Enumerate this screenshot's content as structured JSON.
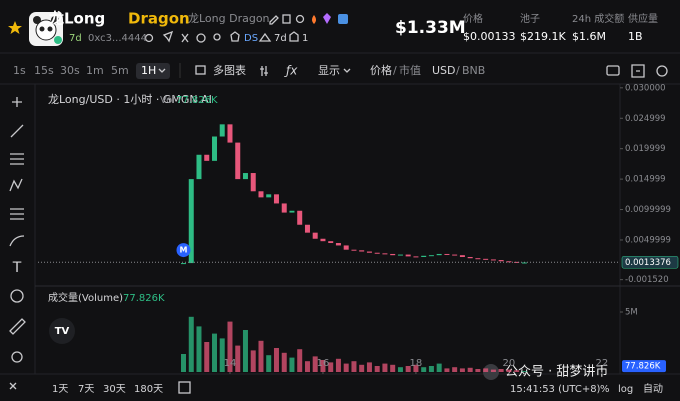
{
  "header": {
    "name": "龙Long",
    "symbol": "Dragon",
    "full_name": "龙Long Dragon",
    "age": "7d",
    "address": "0xc3...4444",
    "ds": "DS",
    "holders_age": "7d",
    "count": "1",
    "market_cap": "$1.33M",
    "stats": [
      {
        "label": "价格",
        "value": "$0.00133"
      },
      {
        "label": "池子",
        "value": "$219.1K"
      },
      {
        "label": "24h 成交额",
        "value": "$1.6M"
      },
      {
        "label": "供应量",
        "value": "1B"
      }
    ]
  },
  "toolbar": {
    "intervals": [
      "1s",
      "15s",
      "30s",
      "1m",
      "5m",
      "1H"
    ],
    "selected_interval": "1H",
    "multi_chart": "多图表",
    "display": "显示",
    "price_toggle": [
      "价格",
      "市值"
    ],
    "currency_toggle": [
      "USD",
      "BNB"
    ]
  },
  "chart_data": [
    {
      "type": "candlestick",
      "title": "龙Long/USD · 1小时 · GMGN.AI",
      "volume_label": "Vol",
      "volume_value": "77.826K",
      "marker": "M",
      "up_color": "#2ebd85",
      "down_color": "#e8577b",
      "x": [
        13,
        13.167,
        13.333,
        13.5,
        13.667,
        13.833,
        14,
        14.167,
        14.333,
        14.5,
        14.667,
        14.833,
        15,
        15.167,
        15.333,
        15.5,
        15.667,
        15.833,
        16,
        16.167,
        16.333,
        16.5,
        16.667,
        16.833,
        17,
        17.167,
        17.333,
        17.5,
        17.667,
        17.833,
        18,
        18.167,
        18.333,
        18.5,
        18.667,
        18.833,
        19,
        19.167,
        19.333,
        19.5,
        19.667,
        19.833,
        20,
        20.167,
        20.333
      ],
      "closes": [
        0.0012,
        0.015,
        0.019,
        0.018,
        0.022,
        0.024,
        0.021,
        0.015,
        0.016,
        0.013,
        0.012,
        0.0125,
        0.011,
        0.0095,
        0.0098,
        0.0075,
        0.0062,
        0.0052,
        0.0048,
        0.0045,
        0.0041,
        0.0034,
        0.0033,
        0.0031,
        0.0029,
        0.0028,
        0.0027,
        0.0025,
        0.0026,
        0.0023,
        0.0022,
        0.0024,
        0.0025,
        0.0027,
        0.0026,
        0.0025,
        0.0022,
        0.002,
        0.0019,
        0.0018,
        0.0017,
        0.0015,
        0.0014,
        0.0013,
        0.0013
      ],
      "last_price": 0.0013376,
      "xlim": [
        9.87,
        22.39
      ],
      "xticks": [
        14,
        16,
        18,
        20,
        22
      ],
      "ylim": [
        -0.0024,
        0.0303
      ],
      "yticks": [
        {
          "value": 0.03,
          "label": "0.030000"
        },
        0.024999,
        0.019999,
        0.014999,
        0.0099999,
        0.0049999,
        {
          "value": -0.00152,
          "label": "-0.001520"
        }
      ]
    },
    {
      "type": "bar",
      "title": "成交量(Volume)",
      "title_value": "77.826K",
      "last_value_label": "77.826K",
      "x": [
        13,
        13.167,
        13.333,
        13.5,
        13.667,
        13.833,
        14,
        14.167,
        14.333,
        14.5,
        14.667,
        14.833,
        15,
        15.167,
        15.333,
        15.5,
        15.667,
        15.833,
        16,
        16.167,
        16.333,
        16.5,
        16.667,
        16.833,
        17,
        17.167,
        17.333,
        17.5,
        17.667,
        17.833,
        18,
        18.167,
        18.333,
        18.5,
        18.667,
        18.833,
        19,
        19.167,
        19.333,
        19.5,
        19.667,
        19.833,
        20,
        20.167,
        20.333
      ],
      "values": [
        1500000,
        4600000,
        3800000,
        2500000,
        3200000,
        2800000,
        4200000,
        2200000,
        3500000,
        1800000,
        2600000,
        1400000,
        2000000,
        1600000,
        1200000,
        1900000,
        900000,
        1300000,
        1000000,
        800000,
        1100000,
        700000,
        900000,
        600000,
        800000,
        500000,
        700000,
        600000,
        400000,
        500000,
        600000,
        400000,
        500000,
        700000,
        300000,
        400000,
        300000,
        350000,
        250000,
        300000,
        200000,
        250000,
        200000,
        150000,
        77826
      ],
      "xlim": [
        9.87,
        22.39
      ],
      "ylim": [
        0,
        7000000
      ],
      "yticks": [
        {
          "value": 5000000,
          "label": "5M"
        }
      ]
    }
  ],
  "range_buttons": [
    "1天",
    "7天",
    "30天",
    "180天"
  ],
  "footer": {
    "time": "15:41:53 (UTC+8)",
    "percent": "%",
    "log": "log",
    "auto": "自动"
  },
  "watermark": "公众号 · 甜梦讲币"
}
